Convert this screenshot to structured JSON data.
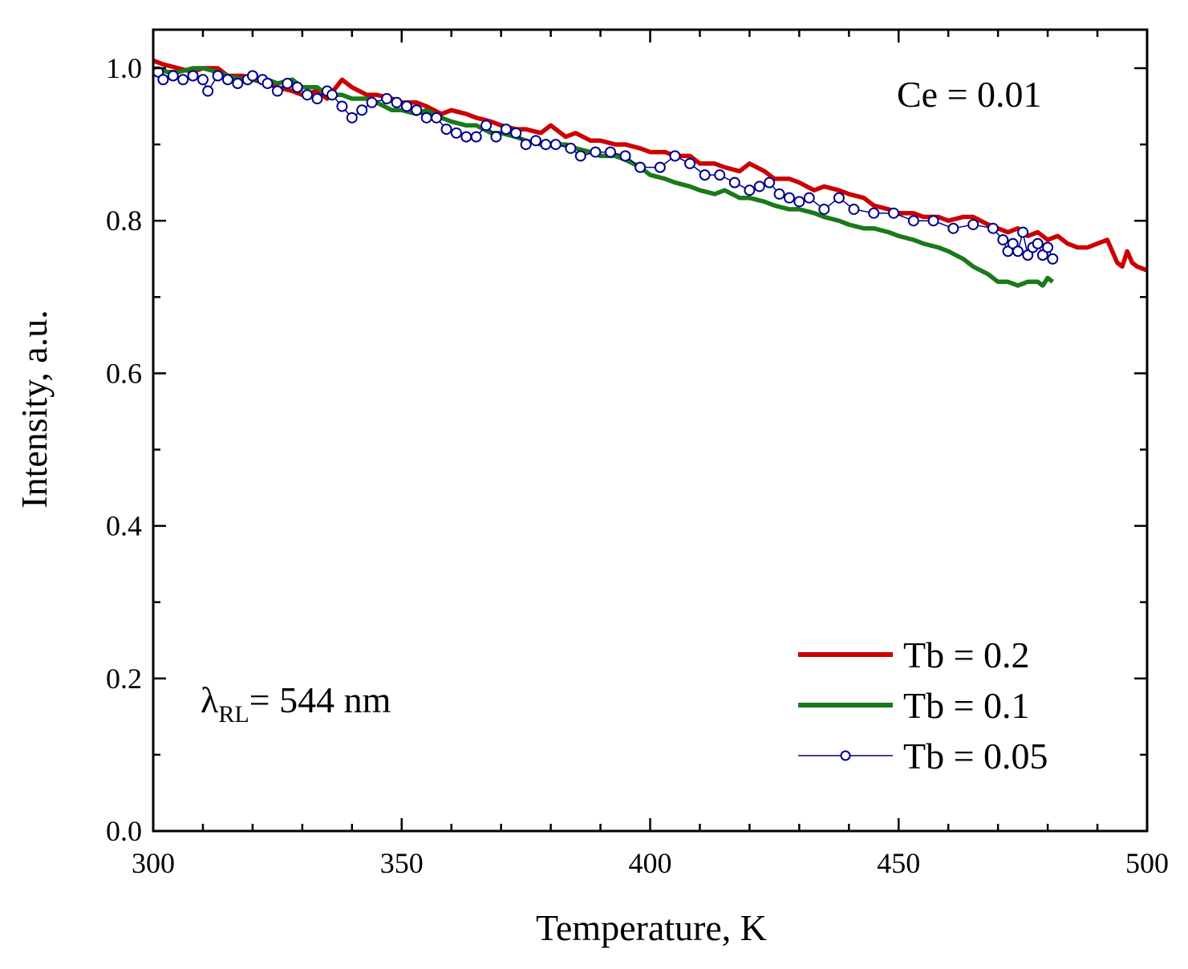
{
  "chart_data": {
    "type": "line",
    "title": "",
    "xlabel": "Temperature, K",
    "ylabel": "Intensity, a.u.",
    "xlim": [
      300,
      500
    ],
    "ylim": [
      0.0,
      1.05
    ],
    "xticks": [
      300,
      350,
      400,
      450,
      500
    ],
    "xtick_labels": [
      "300",
      "350",
      "400",
      "450",
      "500"
    ],
    "yticks": [
      0.0,
      0.2,
      0.4,
      0.6,
      0.8,
      1.0
    ],
    "ytick_labels": [
      "0.0",
      "0.2",
      "0.4",
      "0.6",
      "0.8",
      "1.0"
    ],
    "legend_position": "bottom-right",
    "annotations": {
      "ce_label": "Ce = 0.01",
      "lambda_symbol": "λ",
      "lambda_sub": "RL",
      "lambda_value": "= 544 nm"
    },
    "series": [
      {
        "name": "Tb = 0.2",
        "color": "#cc0000",
        "style": "line",
        "x": [
          300,
          302,
          305,
          308,
          310,
          313,
          315,
          318,
          320,
          323,
          325,
          328,
          330,
          333,
          335,
          338,
          340,
          343,
          345,
          348,
          350,
          353,
          355,
          358,
          360,
          363,
          365,
          368,
          370,
          373,
          375,
          378,
          380,
          383,
          385,
          388,
          390,
          393,
          395,
          398,
          400,
          403,
          405,
          408,
          410,
          413,
          415,
          418,
          420,
          423,
          425,
          428,
          430,
          433,
          435,
          438,
          440,
          443,
          445,
          448,
          450,
          453,
          455,
          458,
          460,
          463,
          465,
          468,
          470,
          472,
          474,
          476,
          478,
          480,
          482,
          484,
          486,
          488,
          490,
          492,
          494,
          495,
          496,
          497,
          498,
          500
        ],
        "y": [
          1.01,
          1.005,
          1.0,
          0.995,
          1.0,
          1.0,
          0.99,
          0.99,
          0.985,
          0.98,
          0.975,
          0.97,
          0.965,
          0.97,
          0.96,
          0.985,
          0.975,
          0.965,
          0.965,
          0.96,
          0.955,
          0.955,
          0.95,
          0.94,
          0.945,
          0.94,
          0.935,
          0.93,
          0.925,
          0.92,
          0.92,
          0.915,
          0.925,
          0.91,
          0.915,
          0.905,
          0.905,
          0.9,
          0.9,
          0.895,
          0.89,
          0.89,
          0.885,
          0.885,
          0.875,
          0.875,
          0.87,
          0.865,
          0.875,
          0.865,
          0.855,
          0.855,
          0.85,
          0.84,
          0.845,
          0.84,
          0.835,
          0.83,
          0.82,
          0.815,
          0.81,
          0.81,
          0.805,
          0.805,
          0.8,
          0.805,
          0.805,
          0.795,
          0.79,
          0.785,
          0.79,
          0.78,
          0.785,
          0.775,
          0.78,
          0.77,
          0.765,
          0.765,
          0.77,
          0.775,
          0.745,
          0.74,
          0.76,
          0.745,
          0.74,
          0.735
        ]
      },
      {
        "name": "Tb = 0.1",
        "color": "#1a7a1a",
        "style": "line",
        "x": [
          300,
          303,
          305,
          308,
          310,
          313,
          315,
          318,
          320,
          323,
          325,
          328,
          330,
          333,
          335,
          338,
          340,
          343,
          345,
          348,
          350,
          353,
          355,
          358,
          360,
          363,
          365,
          368,
          370,
          373,
          375,
          378,
          380,
          383,
          385,
          388,
          390,
          393,
          395,
          398,
          400,
          403,
          405,
          408,
          410,
          413,
          415,
          418,
          420,
          423,
          425,
          428,
          430,
          433,
          435,
          438,
          440,
          443,
          445,
          448,
          450,
          453,
          455,
          458,
          460,
          463,
          465,
          468,
          470,
          472,
          474,
          476,
          478,
          479,
          480,
          481
        ],
        "y": [
          1.0,
          0.995,
          0.995,
          1.0,
          1.0,
          0.995,
          0.99,
          0.985,
          0.985,
          0.985,
          0.98,
          0.985,
          0.975,
          0.975,
          0.965,
          0.965,
          0.96,
          0.96,
          0.955,
          0.945,
          0.945,
          0.94,
          0.945,
          0.935,
          0.93,
          0.925,
          0.925,
          0.915,
          0.915,
          0.91,
          0.905,
          0.9,
          0.9,
          0.9,
          0.895,
          0.89,
          0.885,
          0.885,
          0.88,
          0.87,
          0.86,
          0.855,
          0.85,
          0.845,
          0.84,
          0.835,
          0.84,
          0.83,
          0.83,
          0.825,
          0.82,
          0.815,
          0.815,
          0.81,
          0.805,
          0.8,
          0.795,
          0.79,
          0.79,
          0.785,
          0.78,
          0.775,
          0.77,
          0.765,
          0.76,
          0.75,
          0.74,
          0.73,
          0.72,
          0.72,
          0.715,
          0.72,
          0.72,
          0.715,
          0.725,
          0.72
        ]
      },
      {
        "name": "Tb = 0.05",
        "color": "#00008b",
        "style": "line-marker",
        "x": [
          301,
          302,
          304,
          306,
          308,
          310,
          311,
          313,
          315,
          317,
          319,
          320,
          322,
          323,
          325,
          327,
          329,
          331,
          333,
          335,
          336,
          338,
          340,
          342,
          344,
          347,
          349,
          351,
          353,
          355,
          357,
          359,
          361,
          363,
          365,
          367,
          369,
          371,
          373,
          375,
          377,
          379,
          381,
          384,
          386,
          389,
          392,
          395,
          398,
          402,
          405,
          408,
          411,
          414,
          417,
          420,
          422,
          424,
          426,
          428,
          430,
          432,
          435,
          438,
          441,
          445,
          449,
          453,
          457,
          461,
          465,
          469,
          471,
          472,
          473,
          474,
          475,
          476,
          477,
          478,
          479,
          480,
          481
        ],
        "y": [
          0.995,
          0.985,
          0.99,
          0.985,
          0.99,
          0.985,
          0.97,
          0.99,
          0.985,
          0.98,
          0.985,
          0.99,
          0.985,
          0.98,
          0.97,
          0.98,
          0.975,
          0.965,
          0.96,
          0.97,
          0.965,
          0.95,
          0.935,
          0.945,
          0.955,
          0.96,
          0.955,
          0.95,
          0.945,
          0.935,
          0.935,
          0.92,
          0.915,
          0.91,
          0.91,
          0.925,
          0.91,
          0.92,
          0.915,
          0.9,
          0.905,
          0.9,
          0.9,
          0.895,
          0.885,
          0.89,
          0.89,
          0.885,
          0.87,
          0.87,
          0.885,
          0.875,
          0.86,
          0.86,
          0.85,
          0.84,
          0.845,
          0.85,
          0.835,
          0.83,
          0.825,
          0.83,
          0.815,
          0.83,
          0.815,
          0.81,
          0.81,
          0.8,
          0.8,
          0.79,
          0.795,
          0.79,
          0.775,
          0.76,
          0.77,
          0.76,
          0.785,
          0.755,
          0.765,
          0.77,
          0.755,
          0.765,
          0.75
        ]
      }
    ]
  }
}
